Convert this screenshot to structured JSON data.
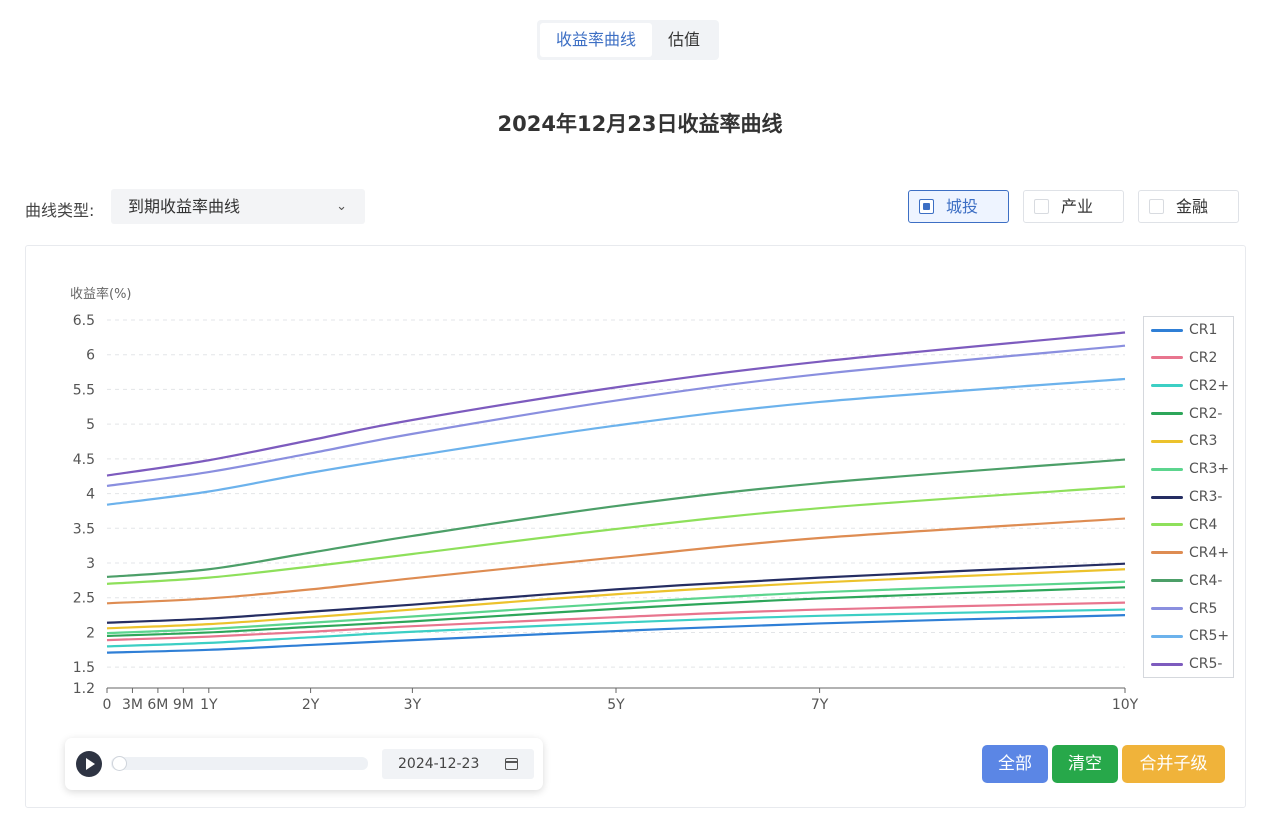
{
  "tabs": [
    {
      "label": "收益率曲线",
      "active": true
    },
    {
      "label": "估值",
      "active": false
    }
  ],
  "page_title": "2024年12月23日收益率曲线",
  "curve_type": {
    "label": "曲线类型:",
    "selected": "到期收益率曲线"
  },
  "categories": [
    {
      "label": "城投",
      "checked": true
    },
    {
      "label": "产业",
      "checked": false
    },
    {
      "label": "金融",
      "checked": false
    }
  ],
  "player": {
    "date": "2024-12-23",
    "progress_fraction": 0.0
  },
  "buttons": {
    "all": {
      "label": "全部",
      "color": "#5b86e5"
    },
    "clear": {
      "label": "清空",
      "color": "#27a84a"
    },
    "merge": {
      "label": "合并子级",
      "color": "#f0b33a"
    }
  },
  "chart_data": {
    "type": "line",
    "ylabel": "收益率(%)",
    "ylim": [
      1.2,
      6.5
    ],
    "yticks": [
      1.2,
      1.5,
      2,
      2.5,
      3,
      3.5,
      4,
      4.5,
      5,
      5.5,
      6,
      6.5
    ],
    "xlim": [
      0,
      10
    ],
    "xticks": [
      {
        "label": "0",
        "value": 0
      },
      {
        "label": "3M",
        "value": 0.25
      },
      {
        "label": "6M",
        "value": 0.5
      },
      {
        "label": "9M",
        "value": 0.75
      },
      {
        "label": "1Y",
        "value": 1
      },
      {
        "label": "2Y",
        "value": 2
      },
      {
        "label": "3Y",
        "value": 3
      },
      {
        "label": "5Y",
        "value": 5
      },
      {
        "label": "7Y",
        "value": 7
      },
      {
        "label": "10Y",
        "value": 10
      }
    ],
    "grid": "horizontal-dashed",
    "legend_position": "right",
    "x": [
      0,
      1,
      2,
      3,
      5,
      7,
      10
    ],
    "series": [
      {
        "name": "CR1",
        "color": "#2f7fd6",
        "values": [
          1.71,
          1.75,
          1.82,
          1.89,
          2.02,
          2.13,
          2.25
        ]
      },
      {
        "name": "CR2",
        "color": "#e8758e",
        "values": [
          1.89,
          1.94,
          2.01,
          2.09,
          2.22,
          2.33,
          2.43
        ]
      },
      {
        "name": "CR2+",
        "color": "#3ccfc4",
        "values": [
          1.8,
          1.85,
          1.93,
          2.01,
          2.14,
          2.24,
          2.33
        ]
      },
      {
        "name": "CR2-",
        "color": "#2da65a",
        "values": [
          1.95,
          2.0,
          2.08,
          2.16,
          2.34,
          2.49,
          2.65
        ]
      },
      {
        "name": "CR3",
        "color": "#ecc22c",
        "values": [
          2.06,
          2.12,
          2.22,
          2.33,
          2.55,
          2.72,
          2.91
        ]
      },
      {
        "name": "CR3+",
        "color": "#5cd58e",
        "values": [
          1.99,
          2.05,
          2.14,
          2.23,
          2.42,
          2.58,
          2.73
        ]
      },
      {
        "name": "CR3-",
        "color": "#252d62",
        "values": [
          2.14,
          2.2,
          2.3,
          2.4,
          2.62,
          2.79,
          2.99
        ]
      },
      {
        "name": "CR4",
        "color": "#8ee05b",
        "values": [
          2.7,
          2.79,
          2.95,
          3.13,
          3.49,
          3.79,
          4.1
        ]
      },
      {
        "name": "CR4+",
        "color": "#de8c52",
        "values": [
          2.42,
          2.49,
          2.62,
          2.78,
          3.08,
          3.36,
          3.64
        ]
      },
      {
        "name": "CR4-",
        "color": "#4c9f68",
        "values": [
          2.8,
          2.91,
          3.15,
          3.39,
          3.82,
          4.15,
          4.49
        ]
      },
      {
        "name": "CR5",
        "color": "#8a8fdf",
        "values": [
          4.11,
          4.31,
          4.58,
          4.86,
          5.34,
          5.72,
          6.13
        ]
      },
      {
        "name": "CR5+",
        "color": "#6cb2ec",
        "values": [
          3.84,
          4.03,
          4.3,
          4.54,
          4.98,
          5.32,
          5.65
        ]
      },
      {
        "name": "CR5-",
        "color": "#7d5bbe",
        "values": [
          4.26,
          4.48,
          4.77,
          5.06,
          5.53,
          5.9,
          6.32
        ]
      }
    ]
  }
}
